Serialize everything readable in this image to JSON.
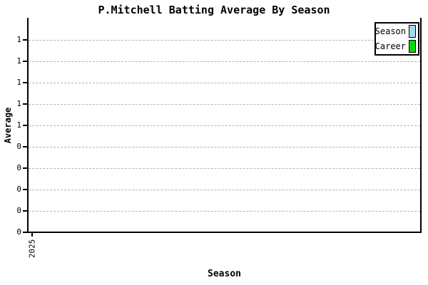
{
  "title": "P.Mitchell Batting Average By Season",
  "axes": {
    "y_label": "Average",
    "x_label": "Season",
    "y_tick_labels_top_to_bottom": [
      "1",
      "1",
      "1",
      "1",
      "1",
      "0",
      "0",
      "0",
      "0",
      "0"
    ],
    "x_tick_labels": [
      "2025"
    ]
  },
  "legend": {
    "items": [
      {
        "label": "Season",
        "swatch_icon": "blue-box-icon",
        "color": "#a8d7f0"
      },
      {
        "label": "Career",
        "swatch_icon": "green-box-icon",
        "color": "#00dd00"
      }
    ]
  },
  "colors": {
    "background": "#ffffff",
    "axis": "#000000",
    "grid": "#b3b3b3",
    "season_series": "#a8d7f0",
    "career_series": "#00dd00"
  },
  "chart_data": {
    "type": "bar",
    "title": "P.Mitchell Batting Average By Season",
    "xlabel": "Season",
    "ylabel": "Average",
    "categories": [
      "2025"
    ],
    "series": [
      {
        "name": "Season",
        "color": "#a8d7f0",
        "values": [
          null
        ]
      },
      {
        "name": "Career",
        "color": "#00dd00",
        "values": [
          null
        ]
      }
    ],
    "ylim": [
      0,
      0.9
    ],
    "y_ticks": [
      0,
      0.1,
      0.2,
      0.3,
      0.4,
      0.5,
      0.6,
      0.7,
      0.8,
      0.9
    ],
    "y_tick_labels_shown_bottom_to_top": [
      "0",
      "0",
      "0",
      "0",
      "0",
      "1",
      "1",
      "1",
      "1",
      "1"
    ],
    "grid": "horizontal dashed gridlines on",
    "legend_position": "top-right",
    "note": "plot area is empty - no visible bars or data points for the 2025 season"
  }
}
